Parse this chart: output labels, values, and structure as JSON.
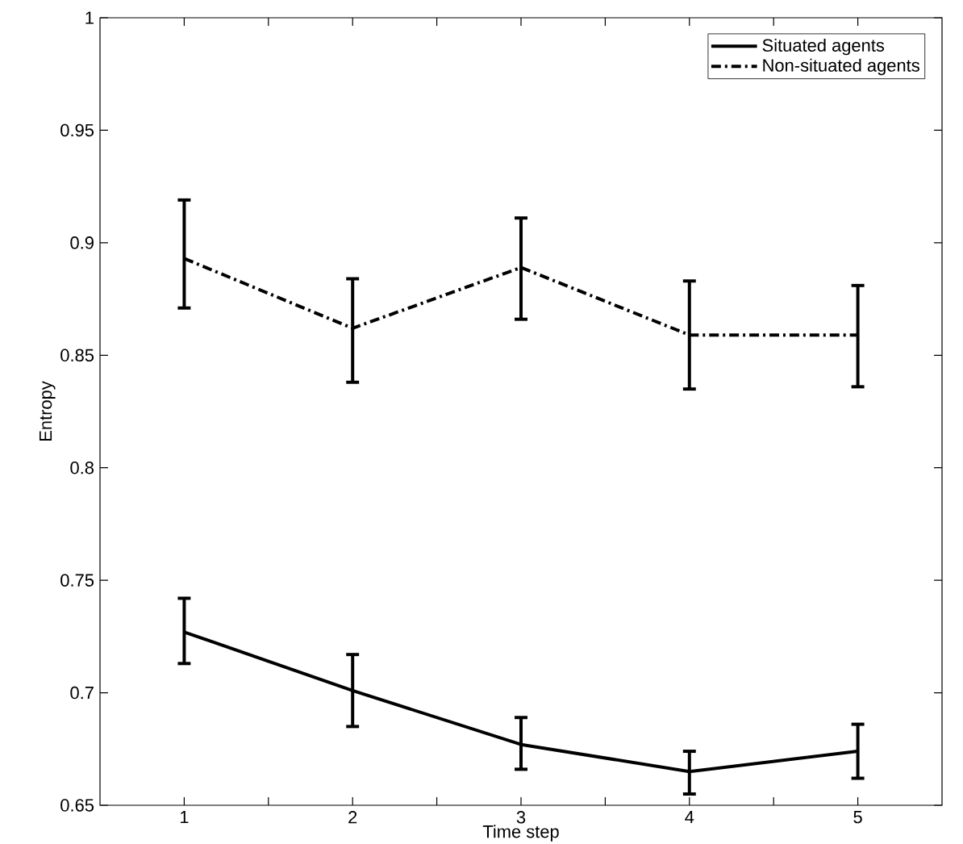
{
  "chart_data": {
    "type": "line",
    "xlabel": "Time step",
    "ylabel": "Entropy",
    "x": [
      1,
      2,
      3,
      4,
      5
    ],
    "series": [
      {
        "name": "Situated agents",
        "color": "#000000",
        "line_style": "solid",
        "values": [
          0.727,
          0.701,
          0.677,
          0.665,
          0.674
        ],
        "errors": [
          [
            0.713,
            0.742
          ],
          [
            0.685,
            0.717
          ],
          [
            0.666,
            0.689
          ],
          [
            0.655,
            0.674
          ],
          [
            0.662,
            0.686
          ]
        ]
      },
      {
        "name": "Non-situated agents",
        "color": "#000000",
        "line_style": "dashdot",
        "values": [
          0.893,
          0.862,
          0.889,
          0.859,
          0.859
        ],
        "errors": [
          [
            0.871,
            0.919
          ],
          [
            0.838,
            0.884
          ],
          [
            0.866,
            0.911
          ],
          [
            0.835,
            0.883
          ],
          [
            0.836,
            0.881
          ]
        ]
      }
    ],
    "xlim": [
      0.5,
      5.5
    ],
    "xticks": [
      1,
      {
        "value": 1.5,
        "label": null
      },
      2,
      {
        "value": 2.5,
        "label": null
      },
      3,
      {
        "value": 3.5,
        "label": null
      },
      4,
      {
        "value": 4.5,
        "label": null
      },
      5
    ],
    "ylim": [
      0.65,
      1
    ],
    "yticks": [
      0.65,
      0.7,
      0.75,
      0.8,
      0.85,
      0.9,
      0.95,
      1
    ],
    "legend": "top right",
    "marker": "none",
    "grid": false
  }
}
